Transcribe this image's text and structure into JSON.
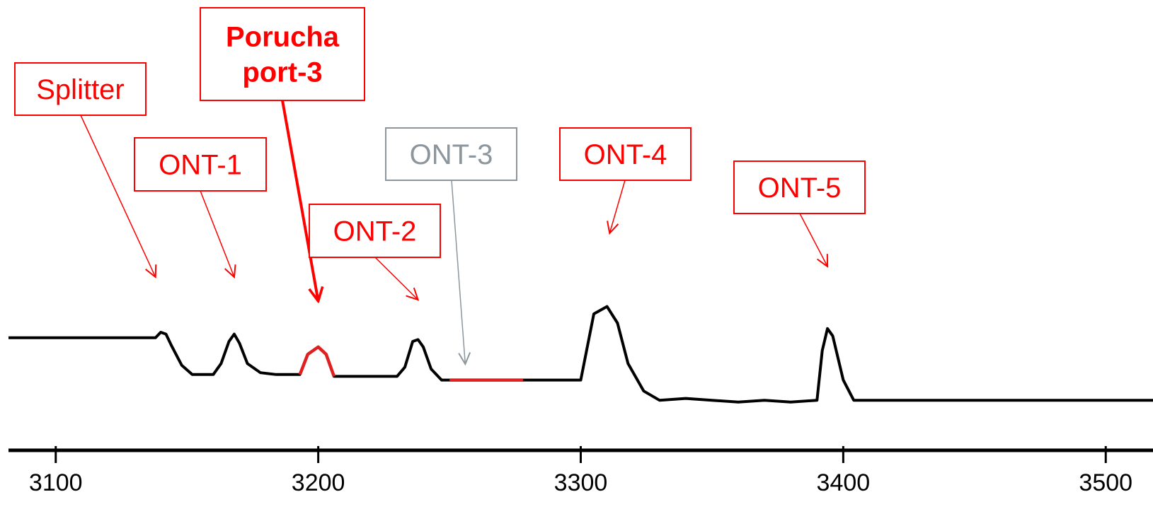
{
  "colors": {
    "trace": "#000000",
    "highlight": "#e02020",
    "annotation": "#ff0000",
    "muted": "#8c969c",
    "axis": "#000000",
    "background": "#ffffff"
  },
  "chart_data": {
    "type": "line",
    "title": "",
    "xlabel": "",
    "ylabel": "",
    "xlim": [
      3082,
      3518
    ],
    "ylim": [
      0,
      100
    ],
    "xticks": [
      3100,
      3200,
      3300,
      3400,
      3500
    ],
    "xtick_labels": [
      "3100",
      "3200",
      "3300",
      "3400",
      "3500"
    ],
    "grid": false,
    "trace": [
      [
        3082,
        47
      ],
      [
        3120,
        47
      ],
      [
        3138,
        47
      ],
      [
        3140,
        50
      ],
      [
        3142,
        49
      ],
      [
        3144,
        43
      ],
      [
        3148,
        32
      ],
      [
        3152,
        27
      ],
      [
        3160,
        27
      ],
      [
        3163,
        33
      ],
      [
        3166,
        45
      ],
      [
        3168,
        49
      ],
      [
        3170,
        44
      ],
      [
        3173,
        33
      ],
      [
        3178,
        28
      ],
      [
        3184,
        27
      ],
      [
        3193,
        27
      ],
      [
        3196,
        38
      ],
      [
        3200,
        42
      ],
      [
        3203,
        38
      ],
      [
        3206,
        26
      ],
      [
        3230,
        26
      ],
      [
        3233,
        31
      ],
      [
        3236,
        45
      ],
      [
        3238,
        46
      ],
      [
        3240,
        42
      ],
      [
        3243,
        30
      ],
      [
        3247,
        24
      ],
      [
        3280,
        24
      ],
      [
        3300,
        24
      ],
      [
        3305,
        60
      ],
      [
        3310,
        64
      ],
      [
        3314,
        55
      ],
      [
        3318,
        33
      ],
      [
        3324,
        18
      ],
      [
        3330,
        13
      ],
      [
        3340,
        14
      ],
      [
        3350,
        13
      ],
      [
        3360,
        12
      ],
      [
        3370,
        13
      ],
      [
        3380,
        12
      ],
      [
        3390,
        13
      ],
      [
        3392,
        40
      ],
      [
        3394,
        52
      ],
      [
        3396,
        48
      ],
      [
        3400,
        24
      ],
      [
        3404,
        13
      ],
      [
        3520,
        13
      ]
    ],
    "highlight_segments": [
      {
        "label": "Porucha port-3",
        "x": [
          3193,
          3206
        ]
      },
      {
        "label": "ONT-3",
        "x": [
          3250,
          3278
        ]
      }
    ],
    "annotations": [
      {
        "label": "Splitter",
        "lines": [
          "Splitter"
        ],
        "target_x": 3138,
        "style": "normal"
      },
      {
        "label": "ONT-1",
        "lines": [
          "ONT-1"
        ],
        "target_x": 3168,
        "style": "normal"
      },
      {
        "label": "Porucha port-3",
        "lines": [
          "Porucha",
          "port-3"
        ],
        "target_x": 3200,
        "style": "bold"
      },
      {
        "label": "ONT-2",
        "lines": [
          "ONT-2"
        ],
        "target_x": 3238,
        "style": "normal"
      },
      {
        "label": "ONT-3",
        "lines": [
          "ONT-3"
        ],
        "target_x": 3256,
        "style": "muted"
      },
      {
        "label": "ONT-4",
        "lines": [
          "ONT-4"
        ],
        "target_x": 3311,
        "style": "normal"
      },
      {
        "label": "ONT-5",
        "lines": [
          "ONT-5"
        ],
        "target_x": 3394,
        "style": "normal"
      }
    ]
  }
}
